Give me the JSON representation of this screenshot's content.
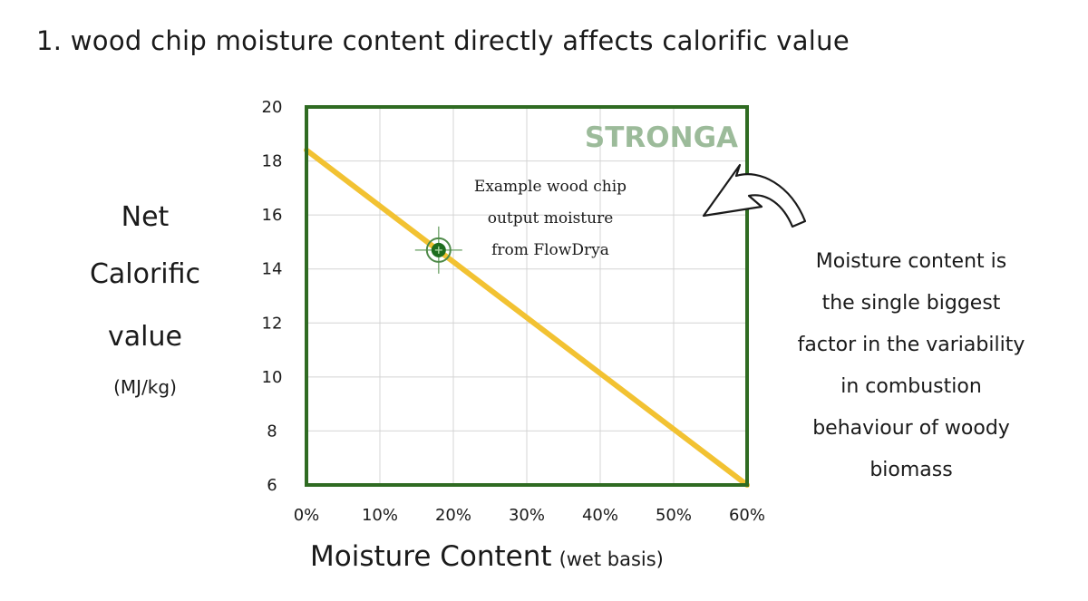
{
  "title": "1. wood chip moisture content directly affects calorific value",
  "y_axis_label": [
    "Net",
    "Calorific",
    "value",
    "(MJ/kg)"
  ],
  "x_axis_label": "Moisture Content",
  "x_axis_sublabel": "(wet basis)",
  "brand": "STRONGA",
  "point_annotation": [
    "Example wood chip",
    "output moisture",
    "from FlowDrya"
  ],
  "side_note": [
    "Moisture content is",
    "the single biggest",
    "factor in the variability",
    "in combustion",
    "behaviour of woody",
    "biomass"
  ],
  "colors": {
    "frame": "#2f6b22",
    "line": "#f2c232",
    "grid": "#d4d4d4",
    "marker": "#1e6d1e",
    "brand": "#9cbb9a"
  },
  "icons": {
    "marker": "crosshair-target-icon",
    "arrow": "curved-arrow-icon"
  },
  "chart_data": {
    "type": "line",
    "x_ticks": [
      "0%",
      "10%",
      "20%",
      "30%",
      "40%",
      "50%",
      "60%"
    ],
    "y_ticks": [
      "6",
      "8",
      "10",
      "12",
      "14",
      "16",
      "18",
      "20"
    ],
    "xlim": [
      0,
      60
    ],
    "ylim": [
      6,
      20
    ],
    "grid": true,
    "series": [
      {
        "x": [
          0,
          60
        ],
        "y": [
          18.4,
          6.0
        ]
      }
    ],
    "highlight_point": {
      "x": 18,
      "y": 14.7
    }
  }
}
